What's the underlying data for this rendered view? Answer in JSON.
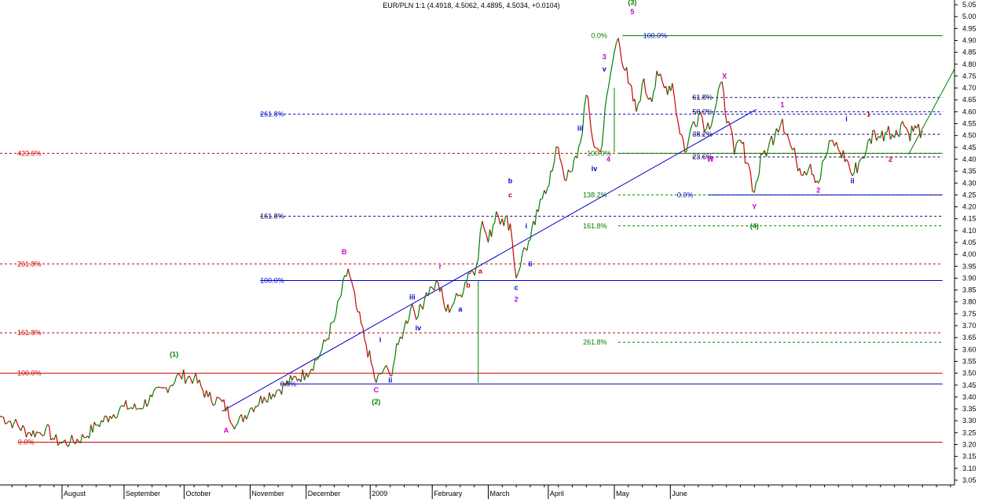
{
  "chart_data": {
    "type": "line",
    "title": "EUR/PLN 1:1 (4.4918, 4.5062, 4.4895, 4.5034, +0.0104)",
    "y_axis": {
      "range": [
        3.03,
        5.07
      ],
      "ticks": [
        "3.05",
        "3.10",
        "3.15",
        "3.20",
        "3.25",
        "3.30",
        "3.35",
        "3.40",
        "3.45",
        "3.50",
        "3.55",
        "3.60",
        "3.65",
        "3.70",
        "3.75",
        "3.80",
        "3.85",
        "3.90",
        "3.95",
        "4.00",
        "4.05",
        "4.10",
        "4.15",
        "4.20",
        "4.25",
        "4.30",
        "4.35",
        "4.40",
        "4.45",
        "4.50",
        "4.55",
        "4.60",
        "4.65",
        "4.70",
        "4.75",
        "4.80",
        "4.85",
        "4.90",
        "4.95",
        "5.00",
        "5.05"
      ]
    },
    "x_axis": {
      "months": [
        {
          "label": "August",
          "at": "2008-08-01"
        },
        {
          "label": "September",
          "at": "2008-09-01"
        },
        {
          "label": "October",
          "at": "2008-10-01"
        },
        {
          "label": "November",
          "at": "2008-11-03"
        },
        {
          "label": "December",
          "at": "2008-12-01"
        },
        {
          "label": "2009",
          "at": "2009-01-02"
        },
        {
          "label": "February",
          "at": "2009-02-02"
        },
        {
          "label": "March",
          "at": "2009-03-02"
        },
        {
          "label": "April",
          "at": "2009-04-01"
        },
        {
          "label": "May",
          "at": "2009-05-04"
        },
        {
          "label": "June",
          "at": "2009-06-01"
        }
      ]
    },
    "series": [
      {
        "values": [
          [
            "2008-07-01",
            3.32
          ],
          [
            "2008-07-08",
            3.29
          ],
          [
            "2008-07-15",
            3.25
          ],
          [
            "2008-07-21",
            3.25
          ],
          [
            "2008-07-24",
            3.27
          ],
          [
            "2008-07-28",
            3.22
          ],
          [
            "2008-07-31",
            3.21
          ],
          [
            "2008-08-05",
            3.21
          ],
          [
            "2008-08-12",
            3.23
          ],
          [
            "2008-08-18",
            3.28
          ],
          [
            "2008-08-25",
            3.32
          ],
          [
            "2008-09-01",
            3.36
          ],
          [
            "2008-09-08",
            3.35
          ],
          [
            "2008-09-15",
            3.4
          ],
          [
            "2008-09-22",
            3.44
          ],
          [
            "2008-09-29",
            3.49
          ],
          [
            "2008-10-06",
            3.48
          ],
          [
            "2008-10-13",
            3.4
          ],
          [
            "2008-10-20",
            3.38
          ],
          [
            "2008-10-27",
            3.28
          ],
          [
            "2008-11-03",
            3.35
          ],
          [
            "2008-11-10",
            3.4
          ],
          [
            "2008-11-17",
            3.43
          ],
          [
            "2008-11-24",
            3.47
          ],
          [
            "2008-12-01",
            3.5
          ],
          [
            "2008-12-08",
            3.58
          ],
          [
            "2008-12-15",
            3.72
          ],
          [
            "2008-12-22",
            3.94
          ],
          [
            "2008-12-26",
            3.78
          ],
          [
            "2008-12-31",
            3.62
          ],
          [
            "2009-01-05",
            3.46
          ],
          [
            "2009-01-09",
            3.52
          ],
          [
            "2009-01-12",
            3.49
          ],
          [
            "2009-01-16",
            3.62
          ],
          [
            "2009-01-19",
            3.69
          ],
          [
            "2009-01-23",
            3.79
          ],
          [
            "2009-01-26",
            3.74
          ],
          [
            "2009-01-30",
            3.84
          ],
          [
            "2009-02-02",
            3.86
          ],
          [
            "2009-02-05",
            3.88
          ],
          [
            "2009-02-09",
            3.76
          ],
          [
            "2009-02-13",
            3.8
          ],
          [
            "2009-02-16",
            3.83
          ],
          [
            "2009-02-20",
            3.92
          ],
          [
            "2009-02-24",
            3.95
          ],
          [
            "2009-02-27",
            4.14
          ],
          [
            "2009-03-02",
            4.05
          ],
          [
            "2009-03-06",
            4.18
          ],
          [
            "2009-03-09",
            4.15
          ],
          [
            "2009-03-13",
            4.13
          ],
          [
            "2009-03-16",
            3.9
          ],
          [
            "2009-03-19",
            4.0
          ],
          [
            "2009-03-23",
            4.06
          ],
          [
            "2009-03-27",
            4.18
          ],
          [
            "2009-03-30",
            4.27
          ],
          [
            "2009-04-03",
            4.35
          ],
          [
            "2009-04-06",
            4.45
          ],
          [
            "2009-04-10",
            4.31
          ],
          [
            "2009-04-13",
            4.35
          ],
          [
            "2009-04-17",
            4.47
          ],
          [
            "2009-04-20",
            4.67
          ],
          [
            "2009-04-24",
            4.45
          ],
          [
            "2009-04-27",
            4.43
          ],
          [
            "2009-05-01",
            4.7
          ],
          [
            "2009-05-04",
            4.85
          ],
          [
            "2009-05-06",
            4.91
          ],
          [
            "2009-05-11",
            4.72
          ],
          [
            "2009-05-15",
            4.6
          ],
          [
            "2009-05-18",
            4.72
          ],
          [
            "2009-05-22",
            4.66
          ],
          [
            "2009-05-26",
            4.75
          ],
          [
            "2009-05-29",
            4.7
          ],
          [
            "2009-06-02",
            4.72
          ],
          [
            "2009-06-05",
            4.55
          ],
          [
            "2009-06-09",
            4.43
          ],
          [
            "2009-06-12",
            4.55
          ],
          [
            "2009-06-16",
            4.6
          ],
          [
            "2009-06-19",
            4.53
          ],
          [
            "2009-06-23",
            4.6
          ],
          [
            "2009-06-26",
            4.72
          ],
          [
            "2009-06-30",
            4.56
          ],
          [
            "2009-07-03",
            4.42
          ],
          [
            "2009-07-06",
            4.48
          ],
          [
            "2009-07-10",
            4.38
          ],
          [
            "2009-07-13",
            4.26
          ],
          [
            "2009-07-17",
            4.42
          ],
          [
            "2009-07-20",
            4.45
          ],
          [
            "2009-07-24",
            4.53
          ],
          [
            "2009-07-27",
            4.57
          ],
          [
            "2009-07-31",
            4.46
          ],
          [
            "2009-08-03",
            4.39
          ],
          [
            "2009-08-07",
            4.35
          ],
          [
            "2009-08-10",
            4.38
          ],
          [
            "2009-08-14",
            4.3
          ],
          [
            "2009-08-17",
            4.4
          ],
          [
            "2009-08-21",
            4.48
          ],
          [
            "2009-08-24",
            4.44
          ],
          [
            "2009-08-28",
            4.4
          ],
          [
            "2009-08-31",
            4.33
          ],
          [
            "2009-09-04",
            4.4
          ],
          [
            "2009-09-07",
            4.44
          ],
          [
            "2009-09-11",
            4.52
          ],
          [
            "2009-09-14",
            4.49
          ],
          [
            "2009-09-18",
            4.54
          ],
          [
            "2009-09-21",
            4.49
          ],
          [
            "2009-09-25",
            4.56
          ],
          [
            "2009-09-28",
            4.51
          ],
          [
            "2009-10-02",
            4.53
          ],
          [
            "2009-10-05",
            4.52
          ]
        ]
      }
    ]
  },
  "annotations": {
    "hlines": [
      {
        "y": 4.425,
        "color": "#cc0000",
        "style": "dash",
        "label": "423.6%",
        "label_at": "2008-07-01",
        "from": "2008-07-01",
        "to": "2009-10-15"
      },
      {
        "y": 3.96,
        "color": "#cc0000",
        "style": "dash",
        "label": "261.8%",
        "label_at": "2008-07-01",
        "from": "2008-07-01",
        "to": "2009-10-15"
      },
      {
        "y": 3.67,
        "color": "#cc0000",
        "style": "dash",
        "label": "161.8%",
        "label_at": "2008-07-01",
        "from": "2008-07-01",
        "to": "2009-10-15"
      },
      {
        "y": 3.5,
        "color": "#cc0000",
        "style": "solid",
        "label": "100.0%",
        "label_at": "2008-07-01",
        "from": "2008-07-01",
        "to": "2009-10-15"
      },
      {
        "y": 3.21,
        "color": "#cc0000",
        "style": "solid",
        "label": "0.0%",
        "label_at": "2008-07-10",
        "from": "2008-07-10",
        "to": "2009-10-15"
      },
      {
        "y": 4.59,
        "color": "#0000cc",
        "style": "dash",
        "label": "261.8%",
        "label_at": "2008-11-08",
        "from": "2008-11-08",
        "to": "2009-10-15"
      },
      {
        "y": 4.16,
        "color": "#000066",
        "style": "dash",
        "label": "161.8%",
        "label_at": "2008-11-08",
        "from": "2008-11-08",
        "to": "2009-10-15"
      },
      {
        "y": 3.89,
        "color": "#0000cc",
        "style": "solid",
        "label": "100.0%",
        "label_at": "2008-11-08",
        "from": "2008-11-08",
        "to": "2009-10-15"
      },
      {
        "y": 3.455,
        "color": "#0000cc",
        "style": "solid",
        "label": "0.0%",
        "label_at": "2008-11-18",
        "from": "2008-11-18",
        "to": "2009-10-15"
      },
      {
        "y": 4.92,
        "color": "#008000",
        "style": "solid",
        "label": "0.0%",
        "label_at": "2009-05-01",
        "from": "2009-05-08",
        "to": "2009-10-15"
      },
      {
        "y": 4.425,
        "color": "#008000",
        "style": "solid",
        "label": "100.0%",
        "label_at": "2009-04-29",
        "from": "2009-05-06",
        "to": "2009-10-15"
      },
      {
        "y": 4.25,
        "color": "#008000",
        "style": "dash",
        "label": "138.2%",
        "label_at": "2009-04-27",
        "from": "2009-05-06",
        "to": "2009-10-15"
      },
      {
        "y": 4.12,
        "color": "#008000",
        "style": "dash",
        "label": "161.8%",
        "label_at": "2009-04-27",
        "from": "2009-05-06",
        "to": "2009-10-15"
      },
      {
        "y": 3.63,
        "color": "#008000",
        "style": "dash",
        "label": "261.8%",
        "label_at": "2009-04-27",
        "from": "2009-05-06",
        "to": "2009-10-15"
      },
      {
        "y": 4.92,
        "color": "#0000cc",
        "style": "none",
        "label": "100.0%",
        "label_at": "2009-05-27",
        "from": "2009-06-02",
        "to": "2009-10-15"
      },
      {
        "y": 4.66,
        "color": "#000066",
        "style": "dash",
        "label": "61.8%",
        "label_at": "2009-06-12",
        "from": "2009-06-12",
        "to": "2009-10-15"
      },
      {
        "y": 4.6,
        "color": "#000066",
        "style": "dash",
        "label": "50.0%",
        "label_at": "2009-06-12",
        "from": "2009-06-12",
        "to": "2009-10-15"
      },
      {
        "y": 4.505,
        "color": "#000066",
        "style": "dash",
        "label": "38.2%",
        "label_at": "2009-06-12",
        "from": "2009-06-12",
        "to": "2009-10-15"
      },
      {
        "y": 4.41,
        "color": "#000066",
        "style": "dash",
        "label": "23.6%",
        "label_at": "2009-06-12",
        "from": "2009-06-12",
        "to": "2009-10-15"
      },
      {
        "y": 4.25,
        "color": "#0000cc",
        "style": "solid",
        "label": "0.0%",
        "label_at": "2009-06-13",
        "from": "2009-06-20",
        "to": "2009-10-15"
      }
    ],
    "trendlines": [
      {
        "color": "#0000cc",
        "from": [
          "2008-10-20",
          3.34
        ],
        "to": [
          "2009-07-14",
          4.61
        ]
      },
      {
        "color": "#008000",
        "from": [
          "2009-09-28",
          4.42
        ],
        "to": [
          "2009-10-21",
          4.78
        ]
      }
    ],
    "vlines": [
      {
        "color": "#008000",
        "at": "2009-02-25",
        "y1": 3.46,
        "y2": 3.89
      },
      {
        "color": "#008000",
        "at": "2009-05-04",
        "y1": 4.43,
        "y2": 4.7
      }
    ],
    "waves": [
      {
        "text": "(1)",
        "color": "#008000",
        "x": "2008-09-26",
        "y": 3.57
      },
      {
        "text": "A",
        "color": "#cc00cc",
        "x": "2008-10-22",
        "y": 3.25
      },
      {
        "text": "B",
        "color": "#cc00cc",
        "x": "2008-12-20",
        "y": 4.0
      },
      {
        "text": "C",
        "color": "#cc00cc",
        "x": "2009-01-05",
        "y": 3.42
      },
      {
        "text": "(2)",
        "color": "#008000",
        "x": "2009-01-05",
        "y": 3.37
      },
      {
        "text": "i",
        "color": "#0000cc",
        "x": "2009-01-07",
        "y": 3.63
      },
      {
        "text": "ii",
        "color": "#0000cc",
        "x": "2009-01-12",
        "y": 3.46
      },
      {
        "text": "iii",
        "color": "#0000cc",
        "x": "2009-01-23",
        "y": 3.81
      },
      {
        "text": "iv",
        "color": "#0000cc",
        "x": "2009-01-26",
        "y": 3.68
      },
      {
        "text": "a",
        "color": "#0000cc",
        "x": "2009-02-16",
        "y": 3.76
      },
      {
        "text": "b",
        "color": "#cc0000",
        "x": "2009-02-20",
        "y": 3.86
      },
      {
        "text": "r",
        "color": "#cc00cc",
        "x": "2009-02-06",
        "y": 3.94
      },
      {
        "text": "a",
        "color": "#cc0000",
        "x": "2009-02-26",
        "y": 3.92
      },
      {
        "text": "b",
        "color": "#0000cc",
        "x": "2009-03-13",
        "y": 4.3
      },
      {
        "text": "c",
        "color": "#cc0000",
        "x": "2009-03-13",
        "y": 4.24
      },
      {
        "text": "i",
        "color": "#0000cc",
        "x": "2009-03-21",
        "y": 4.11
      },
      {
        "text": "ii",
        "color": "#0000cc",
        "x": "2009-03-23",
        "y": 3.95
      },
      {
        "text": "c",
        "color": "#0000cc",
        "x": "2009-03-16",
        "y": 3.85
      },
      {
        "text": "2",
        "color": "#cc00cc",
        "x": "2009-03-16",
        "y": 3.8
      },
      {
        "text": "iii",
        "color": "#0000cc",
        "x": "2009-04-17",
        "y": 4.52
      },
      {
        "text": "iv",
        "color": "#0000cc",
        "x": "2009-04-24",
        "y": 4.35
      },
      {
        "text": "v",
        "color": "#0000cc",
        "x": "2009-04-29",
        "y": 4.77
      },
      {
        "text": "3",
        "color": "#cc00cc",
        "x": "2009-04-29",
        "y": 4.82
      },
      {
        "text": "4",
        "color": "#cc00cc",
        "x": "2009-05-01",
        "y": 4.39
      },
      {
        "text": "5",
        "color": "#cc00cc",
        "x": "2009-05-13",
        "y": 5.01
      },
      {
        "text": "(3)",
        "color": "#008000",
        "x": "2009-05-13",
        "y": 5.05
      },
      {
        "text": "W",
        "color": "#cc00cc",
        "x": "2009-06-21",
        "y": 4.39
      },
      {
        "text": "X",
        "color": "#cc00cc",
        "x": "2009-06-28",
        "y": 4.74
      },
      {
        "text": "Y",
        "color": "#cc00cc",
        "x": "2009-07-13",
        "y": 4.19
      },
      {
        "text": "(4)",
        "color": "#008000",
        "x": "2009-07-13",
        "y": 4.11
      },
      {
        "text": "1",
        "color": "#cc00cc",
        "x": "2009-07-27",
        "y": 4.62
      },
      {
        "text": "2",
        "color": "#cc00cc",
        "x": "2009-08-14",
        "y": 4.26
      },
      {
        "text": "i",
        "color": "#0000cc",
        "x": "2009-08-28",
        "y": 4.56
      },
      {
        "text": "ii",
        "color": "#0000cc",
        "x": "2009-08-31",
        "y": 4.3
      },
      {
        "text": "1",
        "color": "#cc0000",
        "x": "2009-09-08",
        "y": 4.58
      },
      {
        "text": "2",
        "color": "#cc0000",
        "x": "2009-09-19",
        "y": 4.39
      }
    ]
  }
}
